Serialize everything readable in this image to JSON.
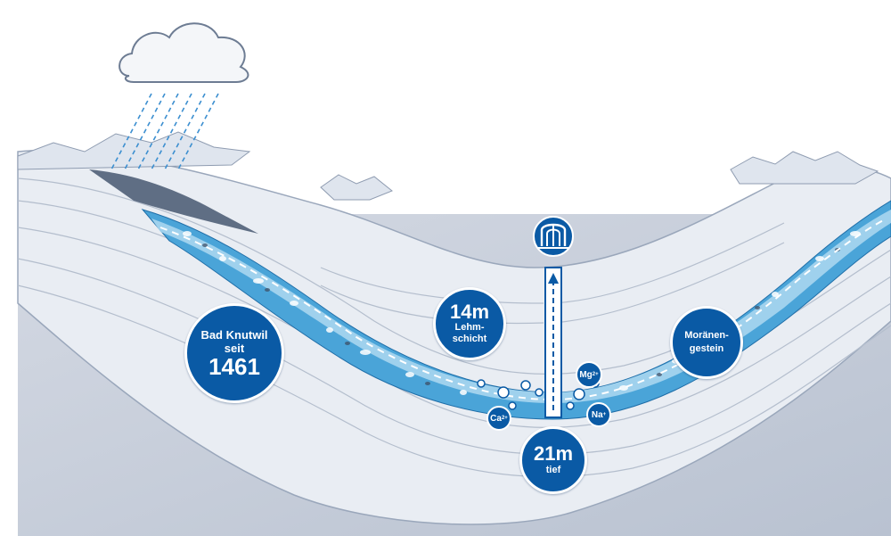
{
  "badges": {
    "knutwil": {
      "line1": "Bad Knutwil",
      "line2": "seit",
      "line3": "1461"
    },
    "lehm": {
      "value": "14m",
      "line1": "Lehm-",
      "line2": "schicht"
    },
    "tief": {
      "value": "21m",
      "label": "tief"
    },
    "moraene": {
      "line1": "Moränen-",
      "line2": "gestein"
    }
  },
  "ions": {
    "ca": {
      "symbol": "Ca",
      "charge": "2+"
    },
    "mg": {
      "symbol": "Mg",
      "charge": "2+"
    },
    "na": {
      "symbol": "Na",
      "charge": "+"
    }
  },
  "icons": [
    "cloud-icon",
    "fountain-icon"
  ],
  "colors": {
    "badge_blue": "#0a5aa5",
    "water_blue": "#4aa4d8",
    "light_water": "#a9d6f0",
    "soil_gray": "#e7ebf1",
    "bedrock": "#c9d0dc"
  }
}
